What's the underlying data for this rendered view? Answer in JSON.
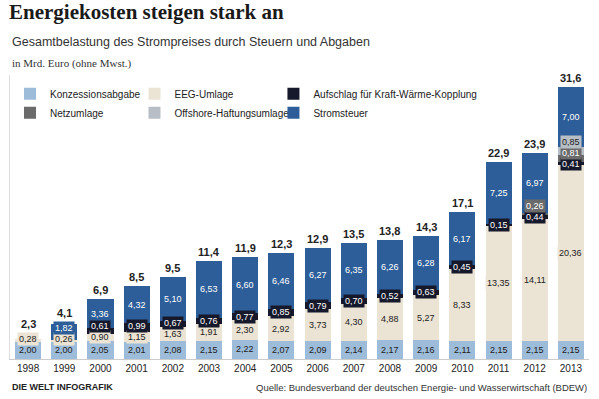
{
  "chart_data": {
    "type": "bar",
    "stacked": true,
    "title": "Energiekosten steigen stark an",
    "subtitle": "Gesamtbelastung des Strompreises durch Steuern und Abgaben",
    "ylabel": "in Mrd. Euro (ohne Mwst.)",
    "source": "Quelle: Bundesverband der deutschen Energie- und Wasserwirtschaft (BDEW)",
    "logo": "DIE WELT INFOGRAFIK",
    "categories": [
      "1998",
      "1999",
      "2000",
      "2001",
      "2002",
      "2003",
      "2004",
      "2005",
      "2006",
      "2007",
      "2008",
      "2009",
      "2010",
      "2011",
      "2012",
      "2013"
    ],
    "ylim": [
      0,
      33
    ],
    "grid": false,
    "legend": "top left",
    "tick_labels": "x",
    "data_labels": true,
    "series": [
      {
        "name": "Konzessionsabgabe",
        "color": "#9dbcd9",
        "values": [
          2.0,
          2.0,
          2.05,
          2.01,
          2.08,
          2.15,
          2.22,
          2.07,
          2.09,
          2.14,
          2.17,
          2.16,
          2.11,
          2.15,
          2.15,
          2.15
        ],
        "value_labels": [
          "2,00",
          "2,00",
          "2,05",
          "2,01",
          "2,08",
          "2,15",
          "2,22",
          "2,07",
          "2,09",
          "2,14",
          "2,17",
          "2,16",
          "2,11",
          "2,15",
          "2,15",
          "2,15"
        ]
      },
      {
        "name": "EEG-Umlage",
        "color": "#ebe3d3",
        "values": [
          0.28,
          0.26,
          0.9,
          1.15,
          1.63,
          1.91,
          2.3,
          2.92,
          3.73,
          4.3,
          4.88,
          5.27,
          8.33,
          13.35,
          14.11,
          20.36
        ],
        "value_labels": [
          "0,28",
          "0,26",
          "0,90",
          "1,15",
          "1,63",
          "1,91",
          "2,30",
          "2,92",
          "3,73",
          "4,30",
          "4,88",
          "5,27",
          "8,33",
          "13,35",
          "14,11",
          "20,36"
        ]
      },
      {
        "name": "Aufschlag für Kraft-Wärme-Kopplung",
        "color": "#16182b",
        "values": [
          null,
          null,
          0.61,
          0.99,
          0.67,
          0.76,
          0.77,
          0.85,
          0.79,
          0.7,
          0.52,
          0.63,
          0.45,
          0.15,
          0.44,
          0.41
        ],
        "value_labels": [
          null,
          null,
          "0,61",
          "0,99",
          "0,67",
          "0,76",
          "0,77",
          "0,85",
          "0,79",
          "0,70",
          "0,52",
          "0,63",
          "0,45",
          "0,15",
          "0,44",
          "0,41"
        ]
      },
      {
        "name": "Netzumlage",
        "color": "#6b6b6b",
        "values": [
          null,
          null,
          null,
          null,
          null,
          null,
          null,
          null,
          null,
          null,
          null,
          null,
          null,
          null,
          0.26,
          0.81
        ],
        "value_labels": [
          null,
          null,
          null,
          null,
          null,
          null,
          null,
          null,
          null,
          null,
          null,
          null,
          null,
          null,
          "0,26",
          "0,81"
        ]
      },
      {
        "name": "Offshore-Haftungsumlage",
        "color": "#b8bec6",
        "values": [
          null,
          null,
          null,
          null,
          null,
          null,
          null,
          null,
          null,
          null,
          null,
          null,
          null,
          null,
          null,
          0.85
        ],
        "value_labels": [
          null,
          null,
          null,
          null,
          null,
          null,
          null,
          null,
          null,
          null,
          null,
          null,
          null,
          null,
          null,
          "0,85"
        ]
      },
      {
        "name": "Stromsteuer",
        "color": "#2d5e99",
        "values": [
          null,
          1.82,
          3.36,
          4.32,
          5.1,
          6.53,
          6.6,
          6.46,
          6.27,
          6.35,
          6.26,
          6.28,
          6.17,
          7.25,
          6.97,
          7.0
        ],
        "value_labels": [
          null,
          "1,82",
          "3,36",
          "4,32",
          "5,10",
          "6,53",
          "6,60",
          "6,46",
          "6,27",
          "6,35",
          "6,26",
          "6,28",
          "6,17",
          "7,25",
          "6,97",
          "7,00"
        ]
      }
    ],
    "totals": {
      "values": [
        2.3,
        4.1,
        6.9,
        8.5,
        9.5,
        11.4,
        11.9,
        12.3,
        12.9,
        13.5,
        13.8,
        14.3,
        17.1,
        22.9,
        23.9,
        31.6
      ],
      "value_labels": [
        "2,3",
        "4,1",
        "6,9",
        "8,5",
        "9,5",
        "11,4",
        "11,9",
        "12,3",
        "12,9",
        "13,5",
        "13,8",
        "14,3",
        "17,1",
        "22,9",
        "23,9",
        "31,6"
      ]
    }
  }
}
